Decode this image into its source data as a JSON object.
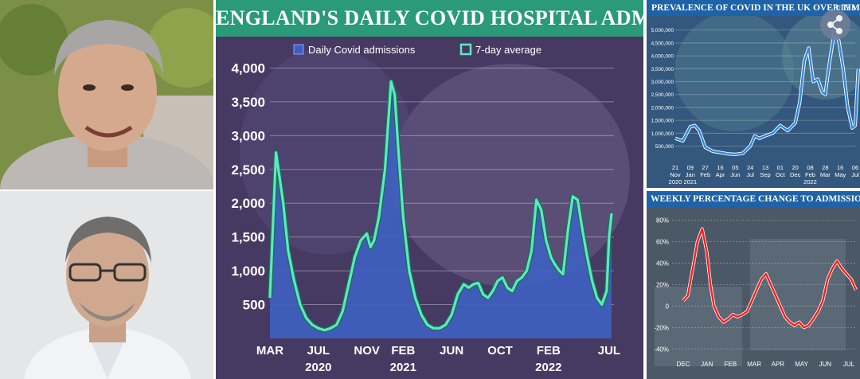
{
  "charts_panel": {
    "main_title": "ENGLAND'S DAILY COVID HOSPITAL ADMISSIONS",
    "prevalence_title": "PREVALENCE OF COVID IN THE UK OVER TIME",
    "prevalence_corner": "JULY 6",
    "weekly_title": "WEEKLY PERCENTAGE CHANGE TO ADMISSIONS"
  },
  "icons": {
    "share": "share-icon"
  },
  "colors": {
    "accent_green": "#2a9a78",
    "bar_blue": "#3f5fc0",
    "line_teal": "#5fe8c0",
    "title_blue": "#1e62a8",
    "line_red": "#ff1a1a"
  },
  "chart_data": [
    {
      "type": "area",
      "title": "ENGLAND'S DAILY COVID HOSPITAL ADMISSIONS",
      "legend": [
        "Daily Covid admissions",
        "7-day average"
      ],
      "legend_position": "top",
      "y_ticks": [
        500,
        1000,
        1500,
        2000,
        2500,
        3000,
        3500,
        4000
      ],
      "y_tick_labels": [
        "500",
        "1,000",
        "1,500",
        "2,000",
        "2,500",
        "3,000",
        "3,500",
        "4,000"
      ],
      "ylim": [
        0,
        4300
      ],
      "x_tick_labels": [
        "MAR",
        "JUL",
        "NOV",
        "FEB",
        "JUN",
        "OCT",
        "FEB",
        "JUL"
      ],
      "x_tick_months": [
        0,
        4,
        8,
        11,
        15,
        19,
        23,
        28
      ],
      "year_labels": [
        "2020",
        "2021",
        "2022"
      ],
      "year_months": [
        4,
        11,
        23
      ],
      "xlim_months": [
        0,
        28.4
      ],
      "grid": true,
      "series": [
        {
          "name": "7-day average",
          "x_months": [
            0,
            0.5,
            1.1,
            1.5,
            2.0,
            2.5,
            3,
            3.5,
            4,
            4.5,
            5,
            5.5,
            6,
            6.5,
            7,
            7.5,
            8,
            8.3,
            8.6,
            9,
            9.5,
            10,
            10.3,
            10.6,
            11,
            11.5,
            12,
            12.5,
            13,
            13.5,
            14,
            14.5,
            15,
            15.5,
            16,
            16.4,
            16.8,
            17.2,
            17.6,
            18,
            18.4,
            18.8,
            19.2,
            19.6,
            20,
            20.4,
            20.8,
            21.2,
            21.6,
            22,
            22.4,
            22.8,
            23.2,
            23.5,
            23.9,
            24.2,
            24.6,
            25,
            25.4,
            25.8,
            26.2,
            26.6,
            27,
            27.4,
            27.8,
            28,
            28.2
          ],
          "values": [
            600,
            2750,
            2000,
            1300,
            850,
            500,
            300,
            200,
            150,
            120,
            150,
            200,
            400,
            800,
            1200,
            1450,
            1550,
            1350,
            1450,
            1800,
            2500,
            3800,
            3600,
            2800,
            1800,
            1000,
            600,
            350,
            200,
            150,
            150,
            200,
            350,
            650,
            800,
            750,
            800,
            820,
            650,
            600,
            700,
            850,
            900,
            750,
            700,
            850,
            900,
            1000,
            1300,
            2050,
            1900,
            1450,
            1200,
            1100,
            1000,
            950,
            1600,
            2100,
            2050,
            1600,
            1200,
            850,
            600,
            500,
            700,
            1500,
            1850
          ]
        }
      ]
    },
    {
      "type": "line",
      "title": "PREVALENCE OF COVID IN THE UK OVER TIME",
      "y_ticks": [
        500000,
        1000000,
        1500000,
        2000000,
        2500000,
        3000000,
        3500000,
        4000000,
        4500000,
        5000000
      ],
      "y_tick_labels": [
        "500,000",
        "1,000,000",
        "1,500,000",
        "2,000,000",
        "2,500,000",
        "3,000,000",
        "3,500,000",
        "4,000,000",
        "4,500,000",
        "5,000,000"
      ],
      "ylim": [
        300000,
        5300000
      ],
      "x_tick_day_labels": [
        "21",
        "09",
        "27",
        "16",
        "05",
        "24",
        "13",
        "01",
        "20",
        "08",
        "28",
        "16",
        "06"
      ],
      "x_tick_month_labels": [
        "Nov",
        "Jan",
        "Feb",
        "Apr",
        "Jun",
        "Jul",
        "Sep",
        "Oct",
        "Dec",
        "Feb",
        "Mar",
        "May",
        "Jul"
      ],
      "year_labels": [
        "2020",
        "2021",
        "2022"
      ],
      "grid": true,
      "series": [
        {
          "name": "",
          "x_ticks_index": [
            0,
            0.5,
            1,
            1.3,
            1.6,
            2,
            2.5,
            3,
            3.5,
            4,
            4.5,
            5,
            5.3,
            5.6,
            6,
            6.5,
            7,
            7.5,
            8,
            8.3,
            8.6,
            8.9,
            9.2,
            9.5,
            9.8,
            10,
            10.3,
            10.6,
            10.9,
            11.2,
            11.5,
            11.8,
            12,
            12.2
          ],
          "values": [
            800000,
            700000,
            1250000,
            1300000,
            1100000,
            450000,
            300000,
            250000,
            200000,
            180000,
            220000,
            500000,
            900000,
            800000,
            900000,
            1000000,
            1300000,
            1100000,
            1400000,
            2200000,
            3800000,
            4300000,
            3000000,
            3100000,
            2600000,
            2500000,
            3800000,
            4900000,
            4600000,
            3500000,
            2000000,
            1200000,
            1300000,
            3500000
          ]
        }
      ]
    },
    {
      "type": "line",
      "title": "WEEKLY PERCENTAGE CHANGE TO ADMISSIONS",
      "y_ticks": [
        -40,
        -20,
        0,
        20,
        40,
        60,
        80
      ],
      "y_tick_labels": [
        "-40%",
        "-20%",
        "0",
        "20%",
        "40%",
        "60%",
        "80%"
      ],
      "ylim": [
        -45,
        85
      ],
      "x_tick_labels": [
        "DEC",
        "JAN",
        "FEB",
        "MAR",
        "APR",
        "MAY",
        "JUN",
        "JUL"
      ],
      "grid": true,
      "series": [
        {
          "name": "",
          "x_ticks_index": [
            0,
            0.2,
            0.4,
            0.6,
            0.8,
            1.0,
            1.15,
            1.3,
            1.5,
            1.7,
            1.9,
            2.1,
            2.3,
            2.5,
            2.7,
            2.9,
            3.1,
            3.3,
            3.5,
            3.7,
            3.9,
            4.1,
            4.3,
            4.5,
            4.7,
            4.9,
            5.1,
            5.3,
            5.5,
            5.7,
            5.9,
            6.1,
            6.3,
            6.5,
            6.7,
            6.9,
            7.1,
            7.3
          ],
          "values": [
            5,
            10,
            35,
            60,
            72,
            50,
            20,
            0,
            -10,
            -15,
            -12,
            -8,
            -10,
            -8,
            -5,
            5,
            15,
            25,
            30,
            20,
            10,
            0,
            -10,
            -15,
            -18,
            -15,
            -20,
            -18,
            -12,
            -5,
            5,
            25,
            35,
            42,
            35,
            30,
            25,
            15
          ]
        }
      ]
    }
  ]
}
